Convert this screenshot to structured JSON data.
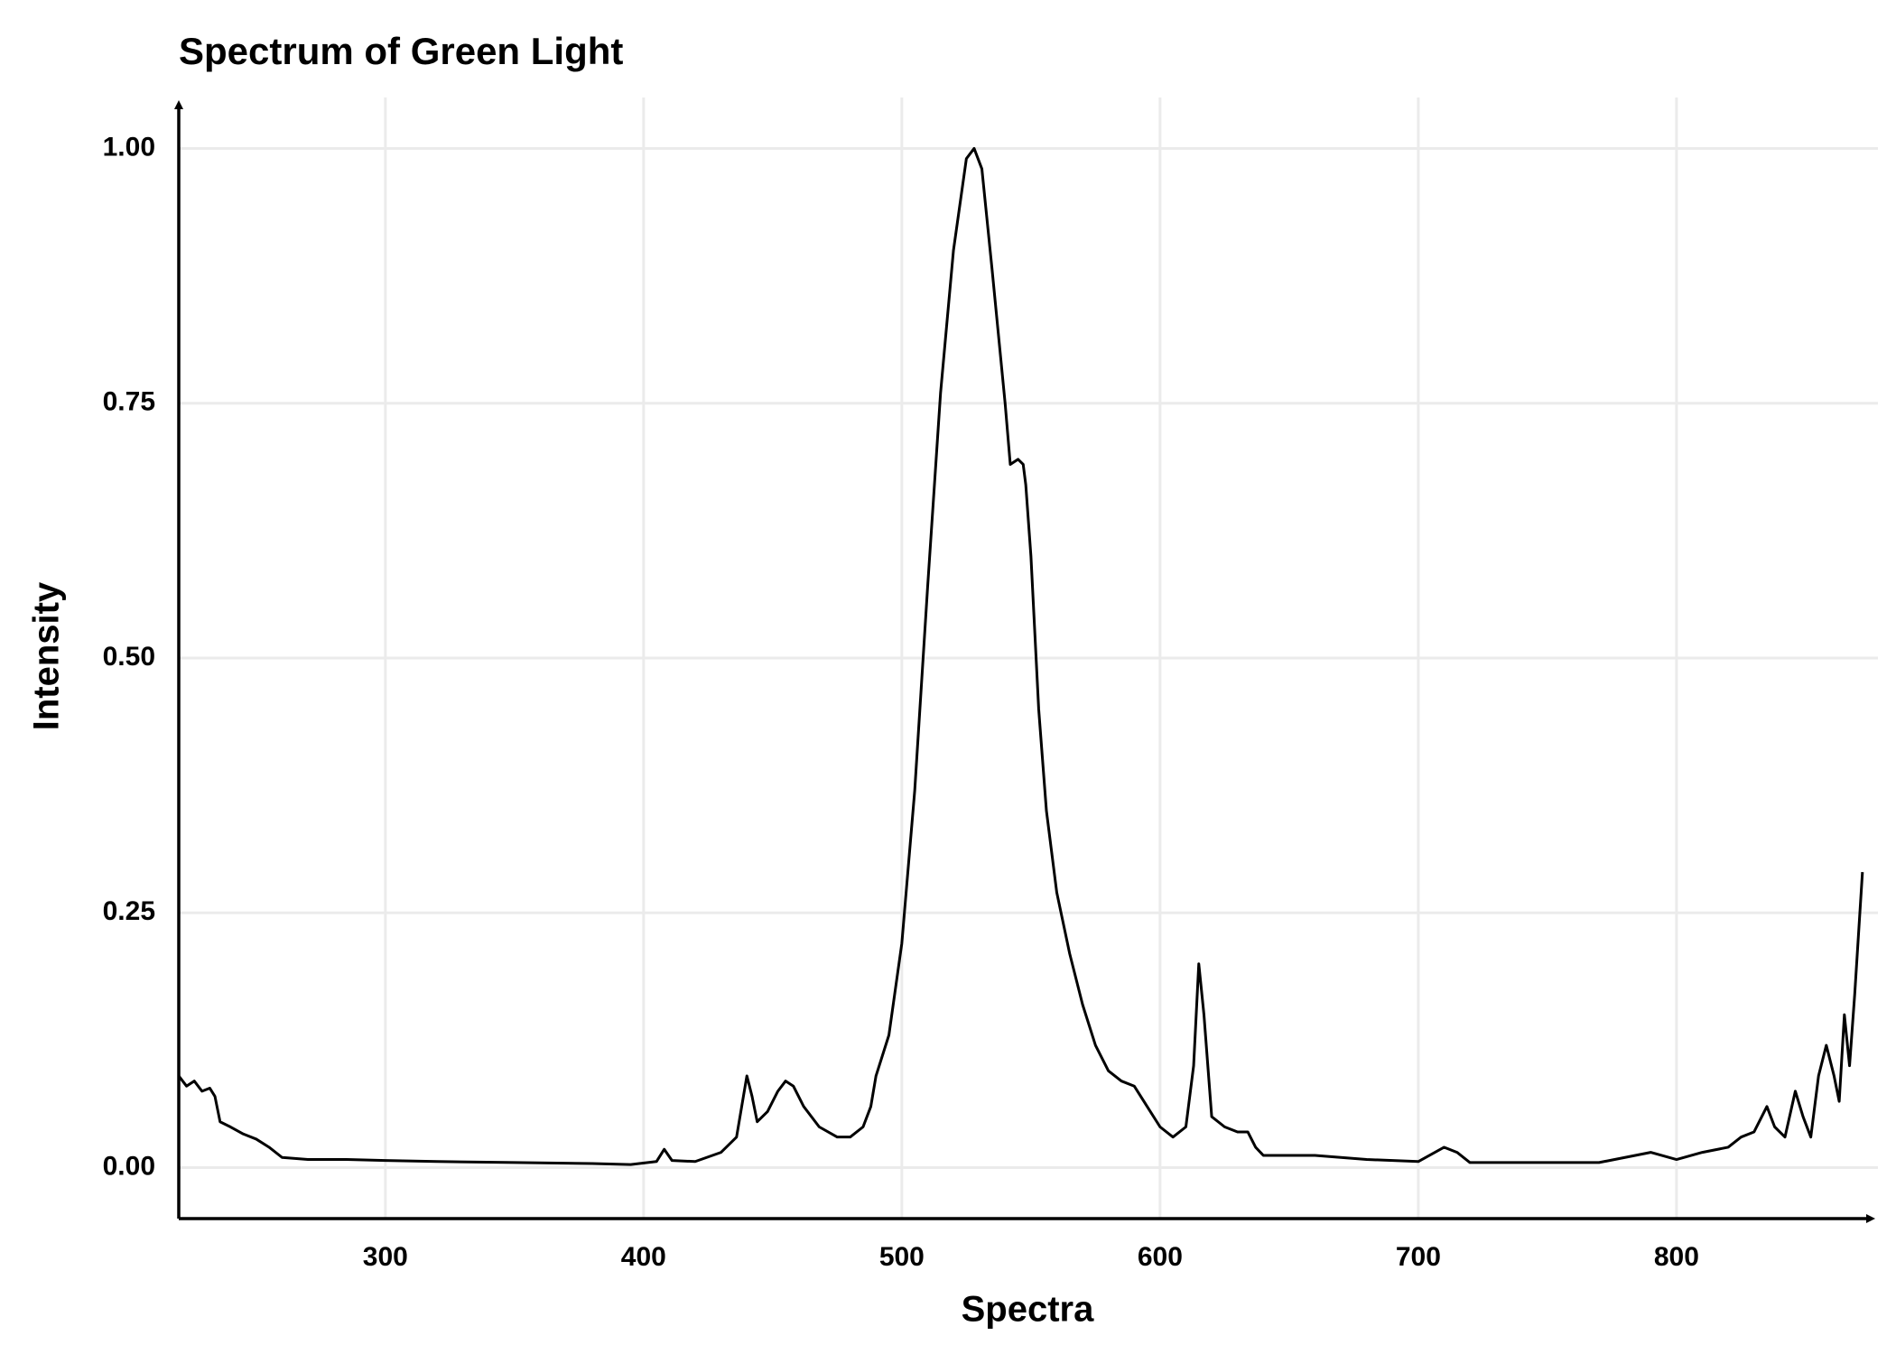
{
  "chart_data": {
    "type": "line",
    "title": "Spectrum of Green Light",
    "x_label": "Spectra",
    "y_label": "Intensity",
    "x": [
      220,
      223,
      226,
      229,
      232,
      234,
      236,
      240,
      245,
      250,
      255,
      260,
      270,
      285,
      300,
      320,
      350,
      380,
      395,
      405,
      408,
      411,
      420,
      430,
      436,
      438,
      440,
      442,
      444,
      448,
      452,
      455,
      458,
      462,
      468,
      475,
      480,
      485,
      488,
      490,
      495,
      500,
      505,
      510,
      515,
      520,
      525,
      528,
      531,
      535,
      540,
      542,
      545,
      547,
      548,
      550,
      553,
      556,
      560,
      565,
      570,
      575,
      580,
      585,
      590,
      595,
      600,
      605,
      610,
      613,
      615,
      617,
      620,
      625,
      630,
      634,
      637,
      640,
      660,
      680,
      700,
      710,
      715,
      720,
      750,
      770,
      790,
      800,
      810,
      820,
      825,
      830,
      835,
      838,
      842,
      846,
      849,
      852,
      855,
      858,
      861,
      863,
      865,
      867,
      869,
      871,
      872
    ],
    "values": [
      0.09,
      0.08,
      0.085,
      0.075,
      0.078,
      0.07,
      0.045,
      0.04,
      0.033,
      0.028,
      0.02,
      0.01,
      0.008,
      0.008,
      0.007,
      0.006,
      0.005,
      0.004,
      0.003,
      0.006,
      0.018,
      0.007,
      0.006,
      0.015,
      0.03,
      0.06,
      0.09,
      0.07,
      0.045,
      0.055,
      0.075,
      0.085,
      0.08,
      0.06,
      0.04,
      0.03,
      0.03,
      0.04,
      0.06,
      0.09,
      0.13,
      0.22,
      0.37,
      0.57,
      0.76,
      0.9,
      0.99,
      1.0,
      0.98,
      0.88,
      0.75,
      0.69,
      0.695,
      0.69,
      0.67,
      0.6,
      0.45,
      0.35,
      0.27,
      0.21,
      0.16,
      0.12,
      0.095,
      0.085,
      0.08,
      0.06,
      0.04,
      0.03,
      0.04,
      0.1,
      0.2,
      0.15,
      0.05,
      0.04,
      0.035,
      0.035,
      0.02,
      0.012,
      0.012,
      0.008,
      0.006,
      0.02,
      0.015,
      0.005,
      0.005,
      0.005,
      0.015,
      0.008,
      0.015,
      0.02,
      0.03,
      0.035,
      0.06,
      0.04,
      0.03,
      0.075,
      0.05,
      0.03,
      0.09,
      0.12,
      0.09,
      0.065,
      0.15,
      0.1,
      0.17,
      0.25,
      0.29
    ],
    "color": "#000000",
    "xlim": [
      220,
      878
    ],
    "ylim": [
      -0.05,
      1.05
    ],
    "xticks": [
      300,
      400,
      500,
      600,
      700,
      800
    ],
    "yticks": [
      {
        "value": 0,
        "label": "0.00"
      },
      {
        "value": 0.25,
        "label": "0.25"
      },
      {
        "value": 0.5,
        "label": "0.50"
      },
      {
        "value": 0.75,
        "label": "0.75"
      },
      {
        "value": 1,
        "label": "1.00"
      }
    ],
    "grid": true
  }
}
